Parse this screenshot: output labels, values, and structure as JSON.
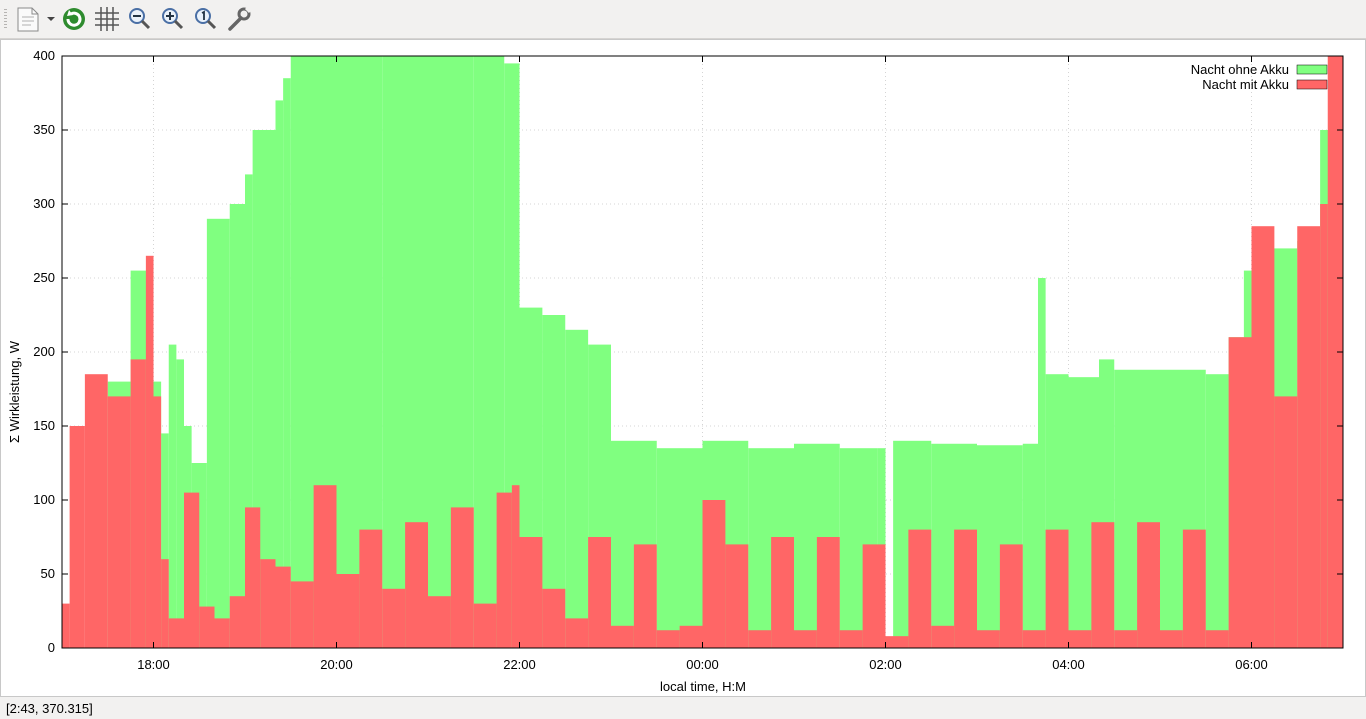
{
  "toolbar": {
    "buttons": [
      {
        "icon": "export-icon"
      },
      {
        "icon": "replot-icon"
      },
      {
        "icon": "grid-icon"
      },
      {
        "icon": "zoom-out-icon"
      },
      {
        "icon": "zoom-in-icon"
      },
      {
        "icon": "zoom-reset-icon"
      },
      {
        "icon": "settings-icon"
      }
    ]
  },
  "status": {
    "text": "[2:43,  370.315]"
  },
  "chart_data": {
    "type": "bar",
    "xlabel": "local time, H:M",
    "ylabel": "Σ Wirkleistung, W",
    "x_ticks": [
      "18:00",
      "20:00",
      "22:00",
      "00:00",
      "02:00",
      "04:00",
      "06:00"
    ],
    "y_ticks": [
      0,
      50,
      100,
      150,
      200,
      250,
      300,
      350,
      400
    ],
    "xlim": [
      "17:00",
      "07:00"
    ],
    "ylim": [
      0,
      400
    ],
    "grid": true,
    "legend_position": "top-right",
    "colors": {
      "Nacht ohne Akku": "#80ff80",
      "Nacht mit Akku": "#ff6666"
    },
    "series": [
      {
        "name": "Nacht ohne Akku",
        "points": [
          [
            "17:00",
            0
          ],
          [
            "17:30",
            180
          ],
          [
            "17:45",
            255
          ],
          [
            "18:00",
            180
          ],
          [
            "18:05",
            145
          ],
          [
            "18:10",
            205
          ],
          [
            "18:15",
            195
          ],
          [
            "18:20",
            150
          ],
          [
            "18:25",
            125
          ],
          [
            "18:35",
            290
          ],
          [
            "18:50",
            300
          ],
          [
            "19:00",
            320
          ],
          [
            "19:05",
            350
          ],
          [
            "19:20",
            370
          ],
          [
            "19:25",
            385
          ],
          [
            "19:30",
            400
          ],
          [
            "20:00",
            400
          ],
          [
            "20:30",
            400
          ],
          [
            "21:00",
            400
          ],
          [
            "21:30",
            400
          ],
          [
            "21:50",
            395
          ],
          [
            "22:00",
            230
          ],
          [
            "22:15",
            225
          ],
          [
            "22:30",
            215
          ],
          [
            "22:45",
            205
          ],
          [
            "23:00",
            140
          ],
          [
            "23:30",
            135
          ],
          [
            "00:00",
            140
          ],
          [
            "00:30",
            135
          ],
          [
            "01:00",
            138
          ],
          [
            "01:30",
            135
          ],
          [
            "01:55",
            135
          ],
          [
            "02:00",
            0
          ],
          [
            "02:05",
            140
          ],
          [
            "02:30",
            138
          ],
          [
            "03:00",
            137
          ],
          [
            "03:30",
            138
          ],
          [
            "03:40",
            250
          ],
          [
            "03:45",
            185
          ],
          [
            "04:00",
            183
          ],
          [
            "04:20",
            195
          ],
          [
            "04:30",
            188
          ],
          [
            "05:00",
            188
          ],
          [
            "05:30",
            185
          ],
          [
            "05:45",
            210
          ],
          [
            "05:55",
            255
          ],
          [
            "06:00",
            270
          ],
          [
            "06:30",
            275
          ],
          [
            "06:45",
            350
          ],
          [
            "07:00",
            360
          ]
        ]
      },
      {
        "name": "Nacht mit Akku",
        "points": [
          [
            "17:00",
            30
          ],
          [
            "17:05",
            150
          ],
          [
            "17:15",
            185
          ],
          [
            "17:30",
            170
          ],
          [
            "17:45",
            195
          ],
          [
            "17:55",
            265
          ],
          [
            "18:00",
            170
          ],
          [
            "18:05",
            60
          ],
          [
            "18:10",
            20
          ],
          [
            "18:20",
            105
          ],
          [
            "18:30",
            28
          ],
          [
            "18:40",
            20
          ],
          [
            "18:50",
            35
          ],
          [
            "19:00",
            95
          ],
          [
            "19:10",
            60
          ],
          [
            "19:20",
            55
          ],
          [
            "19:30",
            45
          ],
          [
            "19:45",
            110
          ],
          [
            "20:00",
            50
          ],
          [
            "20:15",
            80
          ],
          [
            "20:30",
            40
          ],
          [
            "20:45",
            85
          ],
          [
            "21:00",
            35
          ],
          [
            "21:15",
            95
          ],
          [
            "21:30",
            30
          ],
          [
            "21:45",
            105
          ],
          [
            "21:55",
            110
          ],
          [
            "22:00",
            75
          ],
          [
            "22:15",
            40
          ],
          [
            "22:30",
            20
          ],
          [
            "22:45",
            75
          ],
          [
            "23:00",
            15
          ],
          [
            "23:15",
            70
          ],
          [
            "23:30",
            12
          ],
          [
            "23:45",
            15
          ],
          [
            "00:00",
            100
          ],
          [
            "00:15",
            70
          ],
          [
            "00:30",
            12
          ],
          [
            "00:45",
            75
          ],
          [
            "01:00",
            12
          ],
          [
            "01:15",
            75
          ],
          [
            "01:30",
            12
          ],
          [
            "01:45",
            70
          ],
          [
            "02:00",
            8
          ],
          [
            "02:15",
            80
          ],
          [
            "02:30",
            15
          ],
          [
            "02:45",
            80
          ],
          [
            "03:00",
            12
          ],
          [
            "03:15",
            70
          ],
          [
            "03:30",
            12
          ],
          [
            "03:45",
            80
          ],
          [
            "04:00",
            12
          ],
          [
            "04:15",
            85
          ],
          [
            "04:30",
            12
          ],
          [
            "04:45",
            85
          ],
          [
            "05:00",
            12
          ],
          [
            "05:15",
            80
          ],
          [
            "05:30",
            12
          ],
          [
            "05:45",
            210
          ],
          [
            "06:00",
            285
          ],
          [
            "06:15",
            170
          ],
          [
            "06:30",
            285
          ],
          [
            "06:45",
            300
          ],
          [
            "06:50",
            400
          ],
          [
            "07:00",
            340
          ]
        ]
      }
    ]
  }
}
